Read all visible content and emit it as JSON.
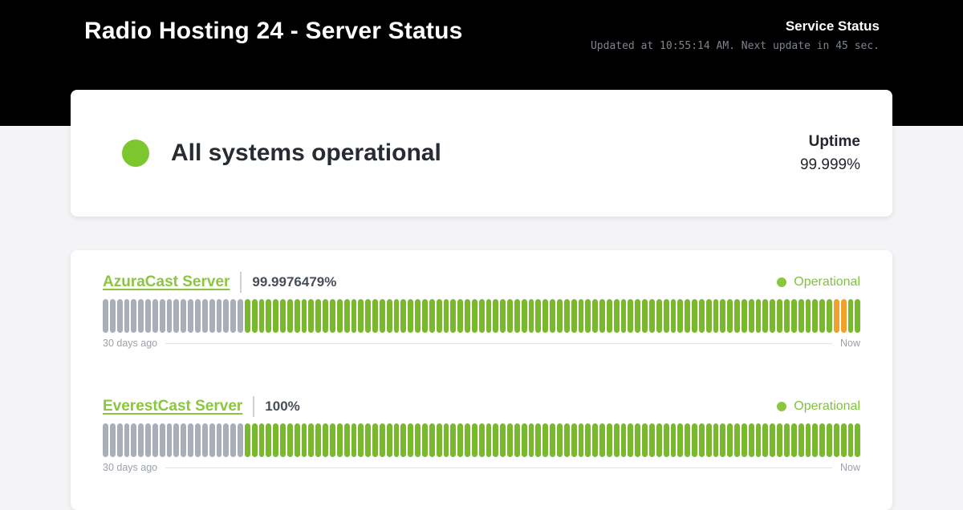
{
  "header": {
    "title": "Radio Hosting 24 - Server Status",
    "service_status_label": "Service Status",
    "update_info": "Updated at 10:55:14 AM. Next update in 45 sec."
  },
  "overall": {
    "message": "All systems operational",
    "uptime_label": "Uptime",
    "uptime_value": "99.999%"
  },
  "services": [
    {
      "name": "AzuraCast Server",
      "uptime": "99.9976479%",
      "status": "Operational",
      "left_label": "30 days ago",
      "right_label": "Now",
      "bars": {
        "total": 107,
        "segments": [
          {
            "color": "gray",
            "count": 20
          },
          {
            "color": "green",
            "count": 83
          },
          {
            "color": "orange",
            "count": 2
          },
          {
            "color": "green",
            "count": 2
          }
        ]
      }
    },
    {
      "name": "EverestCast Server",
      "uptime": "100%",
      "status": "Operational",
      "left_label": "30 days ago",
      "right_label": "Now",
      "bars": {
        "total": 107,
        "segments": [
          {
            "color": "gray",
            "count": 20
          },
          {
            "color": "green",
            "count": 87
          }
        ]
      }
    }
  ],
  "colors": {
    "header_bg": "#000000",
    "page_bg": "#f4f4f6",
    "card_bg": "#ffffff",
    "dot_green": "#7cc72e",
    "link_green": "#8bc63e",
    "status_green": "#7fc33c",
    "bar_green": "#7ab82e",
    "bar_gray": "#a9aeb8",
    "bar_orange": "#efa22b"
  }
}
